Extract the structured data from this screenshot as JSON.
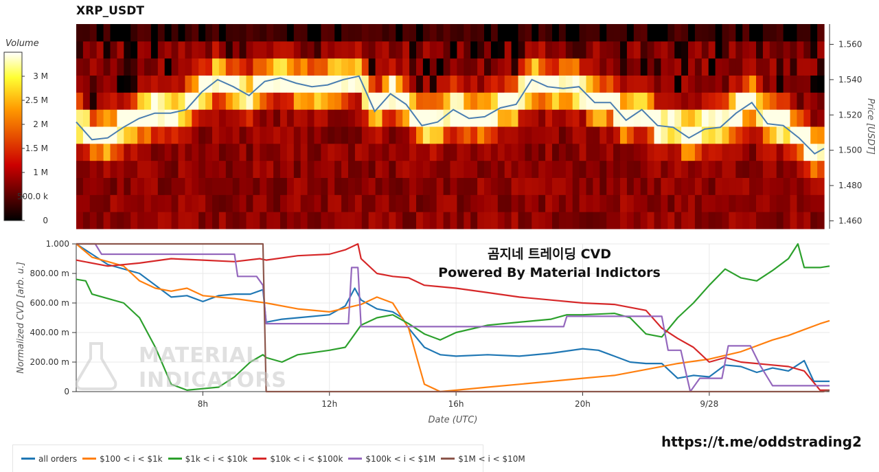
{
  "title": "XRP_USDT",
  "colorbar": {
    "title": "Volume",
    "tick_labels": [
      "0",
      "500.0 k",
      "1 M",
      "1.5 M",
      "2 M",
      "2.5 M",
      "3 M"
    ],
    "tick_values": [
      0,
      500000,
      1000000,
      1500000,
      2000000,
      2500000,
      3000000
    ],
    "max": 3500000
  },
  "overlay": {
    "line1": "곰지네 트레이딩 CVD",
    "line2": "Powered By Material Indictors"
  },
  "link": "https://t.me/oddstrading2",
  "watermark": {
    "line1": "MATERIAL",
    "line2": "INDICATORS"
  },
  "legend": [
    {
      "label": "all orders",
      "color": "#1f77b4"
    },
    {
      "label": "$100 < i < $1k",
      "color": "#ff7f0e"
    },
    {
      "label": "$1k < i < $10k",
      "color": "#2ca02c"
    },
    {
      "label": "$10k < i < $100k",
      "color": "#d62728"
    },
    {
      "label": "$100k < i < $1M",
      "color": "#9467bd"
    },
    {
      "label": "$1M < i < $10M",
      "color": "#8c564b"
    }
  ],
  "chart_data": [
    {
      "type": "heatmap",
      "title": "XRP_USDT",
      "ylabel": "Price [USDT]",
      "y_ticks": [
        "1.460",
        "1.480",
        "1.500",
        "1.520",
        "1.540",
        "1.560"
      ],
      "y_tick_values": [
        1.46,
        1.48,
        1.5,
        1.52,
        1.54,
        1.56
      ],
      "ylim": [
        1.4555,
        1.5715
      ],
      "x_ticks": [
        "8h",
        "12h",
        "16h",
        "20h",
        "9/28"
      ],
      "x_tick_values": [
        8,
        12,
        16,
        20,
        24
      ],
      "xlim": [
        4.0,
        27.8
      ],
      "price_bins": [
        1.4575,
        1.4675,
        1.4775,
        1.4875,
        1.4975,
        1.5075,
        1.5175,
        1.5275,
        1.5375,
        1.5475,
        1.5575,
        1.5675
      ],
      "price_series": {
        "name": "Price",
        "color": "#4a7eb0",
        "x": [
          4.0,
          4.5,
          5.0,
          5.5,
          6.0,
          6.5,
          7.0,
          7.5,
          8.0,
          8.5,
          9.0,
          9.5,
          10.0,
          10.5,
          11.0,
          11.5,
          12.0,
          12.5,
          13.0,
          13.5,
          14.0,
          14.5,
          15.0,
          15.5,
          16.0,
          16.5,
          17.0,
          17.5,
          18.0,
          18.5,
          19.0,
          19.5,
          20.0,
          20.5,
          21.0,
          21.5,
          22.0,
          22.5,
          23.0,
          23.5,
          24.0,
          24.5,
          25.0,
          25.5,
          26.0,
          26.5,
          27.0,
          27.5,
          27.8
        ],
        "y": [
          1.516,
          1.506,
          1.507,
          1.513,
          1.518,
          1.521,
          1.521,
          1.523,
          1.533,
          1.54,
          1.536,
          1.531,
          1.539,
          1.541,
          1.538,
          1.536,
          1.537,
          1.54,
          1.542,
          1.522,
          1.532,
          1.526,
          1.514,
          1.516,
          1.523,
          1.518,
          1.519,
          1.524,
          1.526,
          1.54,
          1.536,
          1.535,
          1.536,
          1.527,
          1.527,
          1.517,
          1.523,
          1.514,
          1.513,
          1.507,
          1.512,
          1.513,
          1.521,
          1.527,
          1.515,
          1.514,
          1.507,
          1.498,
          1.501
        ]
      }
    },
    {
      "type": "line",
      "xlabel": "Date (UTC)",
      "ylabel": "Normalized CVD [arb. u.]",
      "ylim": [
        0,
        1
      ],
      "y_ticks": [
        "0",
        "200.00 m",
        "400.00 m",
        "600.00 m",
        "800.00 m",
        "1.000"
      ],
      "y_tick_values": [
        0,
        0.2,
        0.4,
        0.6,
        0.8,
        1.0
      ],
      "x_ticks": [
        "8h",
        "12h",
        "16h",
        "20h",
        "9/28"
      ],
      "x_tick_values": [
        8,
        12,
        16,
        20,
        24
      ],
      "xlim": [
        4.0,
        27.8
      ],
      "series": [
        {
          "name": "all orders",
          "color": "#1f77b4",
          "x": [
            4.0,
            4.5,
            5.0,
            6.0,
            7.0,
            7.5,
            8.0,
            8.5,
            9.0,
            9.5,
            9.9,
            10.0,
            10.5,
            11.0,
            12.0,
            12.5,
            12.8,
            13.0,
            13.5,
            14.0,
            14.3,
            14.5,
            15.0,
            15.5,
            16.0,
            17.0,
            18.0,
            19.0,
            20.0,
            20.5,
            21.0,
            21.5,
            22.0,
            22.5,
            23.0,
            23.5,
            24.0,
            24.5,
            25.0,
            25.5,
            26.0,
            26.5,
            27.0,
            27.3,
            27.8
          ],
          "y": [
            1.0,
            0.93,
            0.86,
            0.8,
            0.64,
            0.65,
            0.61,
            0.65,
            0.66,
            0.66,
            0.69,
            0.47,
            0.49,
            0.5,
            0.52,
            0.58,
            0.7,
            0.62,
            0.56,
            0.54,
            0.5,
            0.43,
            0.3,
            0.25,
            0.24,
            0.25,
            0.24,
            0.26,
            0.29,
            0.28,
            0.24,
            0.2,
            0.19,
            0.19,
            0.09,
            0.11,
            0.1,
            0.18,
            0.17,
            0.13,
            0.16,
            0.14,
            0.21,
            0.07,
            0.07
          ]
        },
        {
          "name": "$100 < i < $1k",
          "color": "#ff7f0e",
          "x": [
            4.0,
            4.5,
            5.0,
            5.5,
            6.0,
            6.5,
            7.0,
            7.5,
            8.0,
            9.0,
            10.0,
            11.0,
            12.0,
            13.0,
            13.5,
            14.0,
            14.5,
            14.8,
            15.0,
            15.5,
            16.0,
            17.0,
            18.0,
            19.0,
            20.0,
            21.0,
            22.0,
            23.0,
            24.0,
            25.0,
            26.0,
            26.5,
            27.0,
            27.5,
            27.8
          ],
          "y": [
            1.0,
            0.91,
            0.88,
            0.85,
            0.75,
            0.7,
            0.68,
            0.7,
            0.65,
            0.63,
            0.6,
            0.56,
            0.54,
            0.59,
            0.64,
            0.6,
            0.43,
            0.2,
            0.05,
            0.0,
            0.01,
            0.03,
            0.05,
            0.07,
            0.09,
            0.11,
            0.15,
            0.19,
            0.22,
            0.27,
            0.35,
            0.38,
            0.42,
            0.46,
            0.48
          ]
        },
        {
          "name": "$1k < i < $10k",
          "color": "#2ca02c",
          "x": [
            4.0,
            4.3,
            4.5,
            5.0,
            5.5,
            6.0,
            6.5,
            7.0,
            7.5,
            8.0,
            8.5,
            9.0,
            9.5,
            9.9,
            10.0,
            10.5,
            11.0,
            12.0,
            12.5,
            13.0,
            13.5,
            14.0,
            14.5,
            15.0,
            15.5,
            16.0,
            17.0,
            18.0,
            19.0,
            19.5,
            20.0,
            21.0,
            21.5,
            22.0,
            22.5,
            23.0,
            23.5,
            24.0,
            24.5,
            25.0,
            25.5,
            26.0,
            26.5,
            26.8,
            27.0,
            27.5,
            27.8
          ],
          "y": [
            0.76,
            0.75,
            0.66,
            0.63,
            0.6,
            0.5,
            0.3,
            0.05,
            0.01,
            0.02,
            0.03,
            0.1,
            0.2,
            0.25,
            0.23,
            0.2,
            0.25,
            0.28,
            0.3,
            0.45,
            0.5,
            0.52,
            0.46,
            0.39,
            0.35,
            0.4,
            0.45,
            0.47,
            0.49,
            0.52,
            0.52,
            0.53,
            0.5,
            0.39,
            0.37,
            0.5,
            0.6,
            0.72,
            0.83,
            0.77,
            0.75,
            0.82,
            0.9,
            1.0,
            0.84,
            0.84,
            0.85
          ]
        },
        {
          "name": "$10k < i < $100k",
          "color": "#d62728",
          "x": [
            4.0,
            5.0,
            6.0,
            7.0,
            8.0,
            9.0,
            9.8,
            10.0,
            11.0,
            12.0,
            12.5,
            12.9,
            13.0,
            13.5,
            14.0,
            14.5,
            15.0,
            16.0,
            17.0,
            18.0,
            19.0,
            20.0,
            21.0,
            22.0,
            22.5,
            23.0,
            23.5,
            24.0,
            24.5,
            25.0,
            26.0,
            26.5,
            27.0,
            27.5,
            27.8
          ],
          "y": [
            0.89,
            0.85,
            0.87,
            0.9,
            0.89,
            0.88,
            0.9,
            0.89,
            0.92,
            0.93,
            0.96,
            1.0,
            0.9,
            0.8,
            0.78,
            0.77,
            0.72,
            0.7,
            0.67,
            0.64,
            0.62,
            0.6,
            0.59,
            0.55,
            0.43,
            0.36,
            0.3,
            0.2,
            0.23,
            0.2,
            0.18,
            0.17,
            0.14,
            0.01,
            0.01
          ]
        },
        {
          "name": "$100k < i < $1M",
          "color": "#9467bd",
          "x": [
            4.0,
            4.6,
            4.8,
            5.0,
            9.0,
            9.1,
            9.7,
            9.9,
            10.0,
            12.3,
            12.6,
            12.7,
            12.9,
            13.0,
            17.0,
            19.4,
            19.5,
            22.3,
            22.5,
            22.7,
            23.1,
            23.4,
            23.7,
            24.0,
            24.4,
            24.6,
            25.3,
            25.6,
            26.0,
            27.8
          ],
          "y": [
            1.0,
            1.0,
            0.93,
            0.93,
            0.93,
            0.78,
            0.78,
            0.72,
            0.46,
            0.46,
            0.46,
            0.84,
            0.84,
            0.44,
            0.44,
            0.44,
            0.51,
            0.51,
            0.51,
            0.28,
            0.28,
            0.0,
            0.09,
            0.09,
            0.09,
            0.31,
            0.31,
            0.18,
            0.04,
            0.04
          ]
        },
        {
          "name": "$1M < i < $10M",
          "color": "#8c564b",
          "x": [
            4.0,
            9.9,
            10.0,
            27.6,
            27.8
          ],
          "y": [
            1.0,
            1.0,
            0.0,
            0.0,
            0.01
          ]
        }
      ]
    }
  ]
}
